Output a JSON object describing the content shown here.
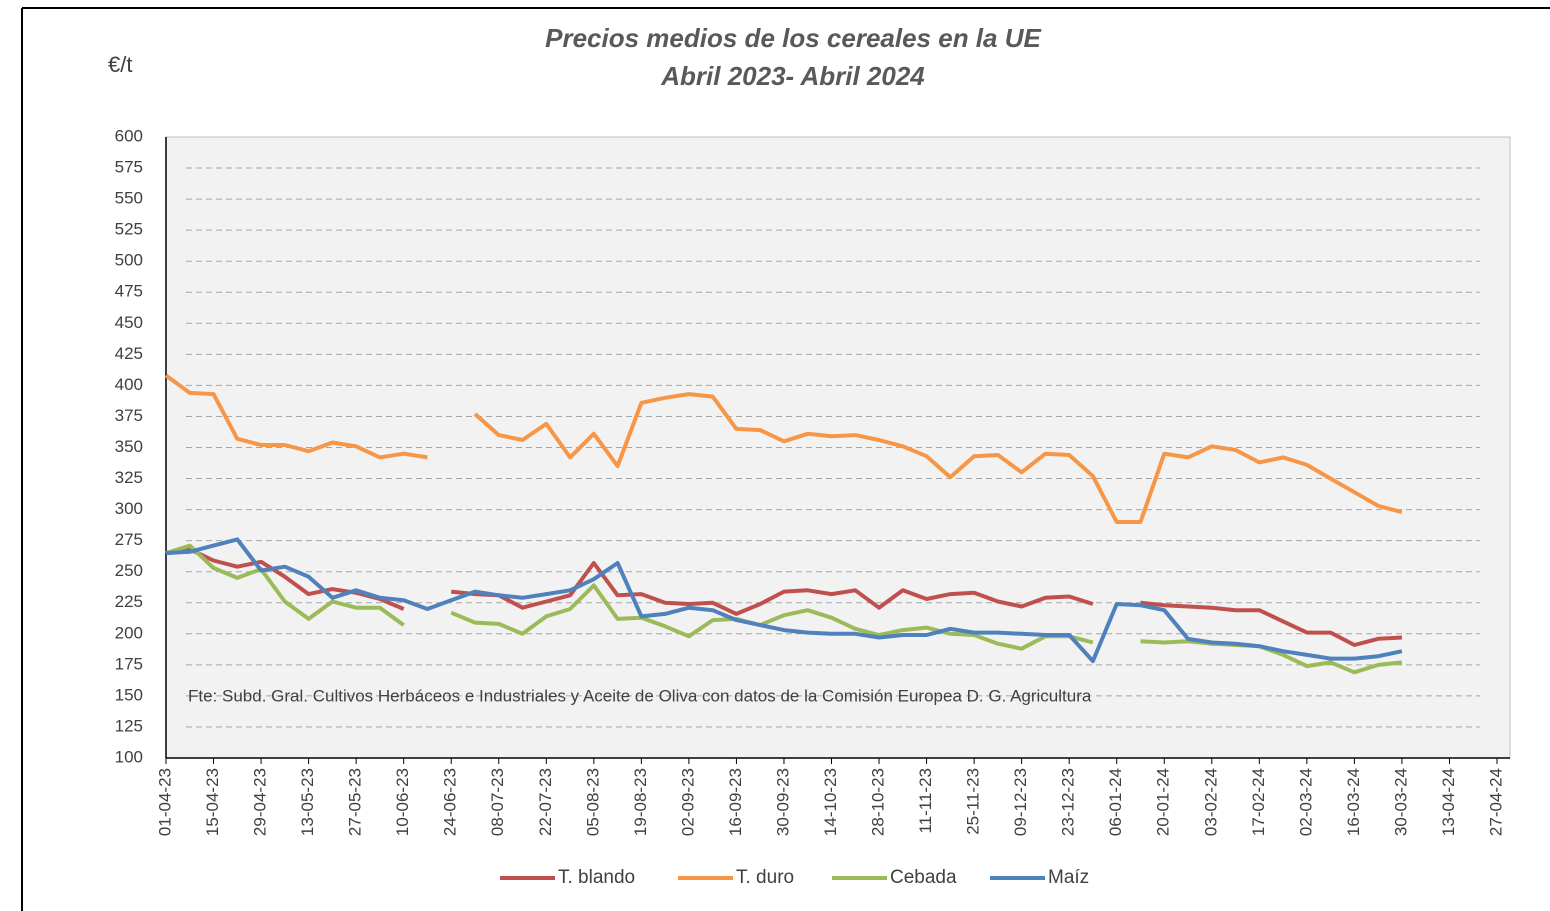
{
  "chart_data": {
    "type": "line",
    "title": "Precios medios de los cereales en la UE",
    "subtitle": "Abril 2023- Abril 2024",
    "ylabel": "€/t",
    "annotation": "Fte: Subd. Gral. Cultivos Herbáceos e Industriales y Aceite de Oliva con datos de la Comisión Europea D. G. Agricultura",
    "categories": [
      "01-04-23",
      null,
      "15-04-23",
      null,
      "29-04-23",
      null,
      "13-05-23",
      null,
      "27-05-23",
      null,
      "10-06-23",
      null,
      "24-06-23",
      null,
      "08-07-23",
      null,
      "22-07-23",
      null,
      "05-08-23",
      null,
      "19-08-23",
      null,
      "02-09-23",
      null,
      "16-09-23",
      null,
      "30-09-23",
      null,
      "14-10-23",
      null,
      "28-10-23",
      null,
      "11-11-23",
      null,
      "25-11-23",
      null,
      "09-12-23",
      null,
      "23-12-23",
      null,
      "06-01-24",
      null,
      "20-01-24",
      null,
      "03-02-24",
      null,
      "17-02-24",
      null,
      "02-03-24",
      null,
      "16-03-24",
      null,
      "30-03-24",
      null,
      "13-04-24",
      null,
      "27-04-24"
    ],
    "series": [
      {
        "name": "T. blando",
        "color": "#c0504d",
        "values": [
          265,
          268,
          259,
          254,
          258,
          246,
          232,
          236,
          233,
          228,
          220,
          null,
          234,
          232,
          231,
          221,
          226,
          231,
          257,
          231,
          232,
          225,
          224,
          225,
          216,
          224,
          234,
          235,
          232,
          235,
          221,
          235,
          228,
          232,
          233,
          226,
          222,
          229,
          230,
          224,
          null,
          225,
          223,
          222,
          221,
          219,
          219,
          210,
          201,
          201,
          191,
          196,
          197,
          null,
          null,
          null,
          null
        ]
      },
      {
        "name": "T. duro",
        "color": "#f79646",
        "values": [
          408,
          394,
          393,
          357,
          352,
          352,
          347,
          354,
          351,
          342,
          345,
          342,
          null,
          377,
          360,
          356,
          369,
          342,
          361,
          335,
          386,
          390,
          393,
          391,
          365,
          364,
          355,
          361,
          359,
          360,
          356,
          351,
          343,
          326,
          343,
          344,
          330,
          345,
          344,
          327,
          290,
          290,
          345,
          342,
          351,
          348,
          338,
          342,
          336,
          325,
          314,
          303,
          298,
          null,
          null,
          null,
          null
        ]
      },
      {
        "name": "Cebada",
        "color": "#9bbb59",
        "values": [
          265,
          271,
          253,
          245,
          252,
          226,
          212,
          226,
          221,
          221,
          207,
          null,
          217,
          209,
          208,
          200,
          214,
          220,
          239,
          212,
          213,
          206,
          198,
          211,
          212,
          207,
          215,
          219,
          213,
          204,
          199,
          203,
          205,
          200,
          199,
          192,
          188,
          198,
          198,
          193,
          null,
          194,
          193,
          194,
          192,
          191,
          190,
          183,
          174,
          177,
          169,
          175,
          177,
          null,
          null,
          null,
          null
        ]
      },
      {
        "name": "Maíz",
        "color": "#4f81bd",
        "values": [
          265,
          266,
          271,
          276,
          251,
          254,
          246,
          229,
          235,
          229,
          227,
          220,
          227,
          234,
          231,
          229,
          232,
          235,
          244,
          257,
          214,
          216,
          221,
          219,
          211,
          207,
          203,
          201,
          200,
          200,
          197,
          199,
          199,
          204,
          201,
          201,
          200,
          199,
          199,
          178,
          224,
          223,
          219,
          196,
          193,
          192,
          190,
          186,
          183,
          180,
          180,
          182,
          186,
          null,
          null,
          null,
          null
        ]
      }
    ],
    "ylim": [
      100,
      600
    ],
    "yticks": [
      100,
      125,
      150,
      175,
      200,
      225,
      250,
      275,
      300,
      325,
      350,
      375,
      400,
      425,
      450,
      475,
      500,
      525,
      550,
      575,
      600
    ],
    "grid": true
  }
}
